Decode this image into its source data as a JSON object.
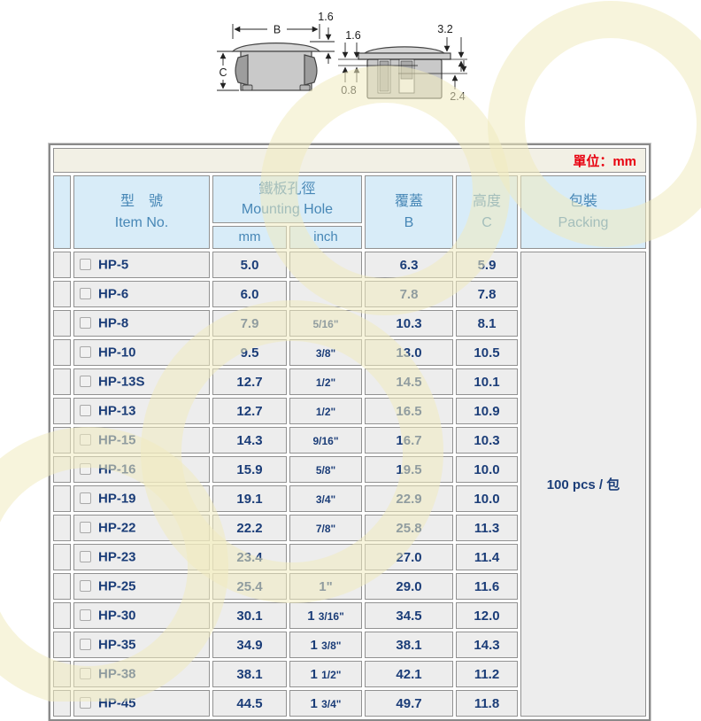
{
  "page": {
    "unit_label": "單位：mm"
  },
  "diagram": {
    "labels": {
      "b": "B",
      "c": "C",
      "cap_thickness": "1.6",
      "sec_top_left": "1.6",
      "sec_top_right": "3.2",
      "sec_left": "0.8",
      "sec_bottom_right": "2.4"
    }
  },
  "table": {
    "header": {
      "item_no_zh": "型　號",
      "item_no_en": "Item No.",
      "mounting_zh": "鐵板孔徑",
      "mounting_en": "Mounting Hole",
      "mm": "mm",
      "inch": "inch",
      "cover_zh": "覆蓋",
      "cover_en": "B",
      "height_zh": "高度",
      "height_en": "C",
      "packing_zh": "包裝",
      "packing_en": "Packing"
    },
    "packing_value": "100 pcs / 包",
    "rows": [
      {
        "item": "HP-5",
        "mm": "5.0",
        "inch": "",
        "b": "6.3",
        "c": "5.9"
      },
      {
        "item": "HP-6",
        "mm": "6.0",
        "inch": "",
        "b": "7.8",
        "c": "7.8"
      },
      {
        "item": "HP-8",
        "mm": "7.9",
        "inch": "5/16\"",
        "b": "10.3",
        "c": "8.1"
      },
      {
        "item": "HP-10",
        "mm": "9.5",
        "inch": "3/8\"",
        "b": "13.0",
        "c": "10.5"
      },
      {
        "item": "HP-13S",
        "mm": "12.7",
        "inch": "1/2\"",
        "b": "14.5",
        "c": "10.1"
      },
      {
        "item": "HP-13",
        "mm": "12.7",
        "inch": "1/2\"",
        "b": "16.5",
        "c": "10.9"
      },
      {
        "item": "HP-15",
        "mm": "14.3",
        "inch": "9/16\"",
        "b": "16.7",
        "c": "10.3"
      },
      {
        "item": "HP-16",
        "mm": "15.9",
        "inch": "5/8\"",
        "b": "19.5",
        "c": "10.0"
      },
      {
        "item": "HP-19",
        "mm": "19.1",
        "inch": "3/4\"",
        "b": "22.9",
        "c": "10.0"
      },
      {
        "item": "HP-22",
        "mm": "22.2",
        "inch": "7/8\"",
        "b": "25.8",
        "c": "11.3"
      },
      {
        "item": "HP-23",
        "mm": "23.4",
        "inch": "",
        "b": "27.0",
        "c": "11.4"
      },
      {
        "item": "HP-25",
        "mm": "25.4",
        "inch": "1\"",
        "b": "29.0",
        "c": "11.6"
      },
      {
        "item": "HP-30",
        "mm": "30.1",
        "inch": "1 3/16\"",
        "b": "34.5",
        "c": "12.0"
      },
      {
        "item": "HP-35",
        "mm": "34.9",
        "inch": "1 3/8\"",
        "b": "38.1",
        "c": "14.3"
      },
      {
        "item": "HP-38",
        "mm": "38.1",
        "inch": "1 1/2\"",
        "b": "42.1",
        "c": "11.2"
      },
      {
        "item": "HP-45",
        "mm": "44.5",
        "inch": "1 3/4\"",
        "b": "49.7",
        "c": "11.8"
      }
    ]
  },
  "colors": {
    "accent_red": "#e8000f",
    "header_blue_bg": "#d8ecf8",
    "header_text_blue": "#4787b6",
    "value_navy": "#1b3d78",
    "cell_gray": "#ededed",
    "watermark_yellow": "#f0ebc0"
  }
}
